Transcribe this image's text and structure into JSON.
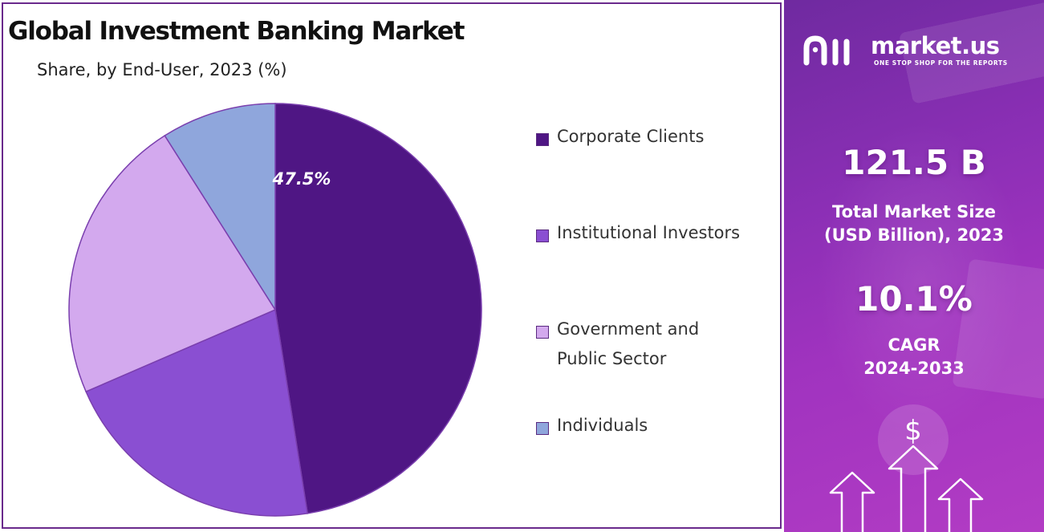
{
  "chart_data": {
    "type": "pie",
    "title": "Global Investment Banking Market",
    "subtitle": "Share, by End-User, 2023 (%)",
    "slices": [
      {
        "label": "Corporate Clients",
        "value": 47.5,
        "display_label": "47.5%",
        "color": "#4f1684"
      },
      {
        "label": "Institutional Investors",
        "value": 21,
        "display_label": "",
        "color": "#8a4fd2"
      },
      {
        "label": "Government and Public Sector",
        "value": 22.5,
        "display_label": "",
        "color": "#d3a9ee"
      },
      {
        "label": "Individuals",
        "value": 9,
        "display_label": "",
        "color": "#8fa6dc"
      }
    ],
    "start_angle_deg": 0,
    "direction": "clockwise",
    "legend_position": "right",
    "border_color": "#6a2a8c"
  },
  "legend": {
    "items": [
      {
        "line1": "Corporate Clients",
        "line2": ""
      },
      {
        "line1": "Institutional Investors",
        "line2": ""
      },
      {
        "line1": "Government and",
        "line2": "Public Sector"
      },
      {
        "line1": "Individuals",
        "line2": ""
      }
    ]
  },
  "side_panel": {
    "brand_name": "market.us",
    "brand_tagline": "ONE STOP SHOP FOR THE REPORTS",
    "market_size_value": "121.5 B",
    "market_size_label_1": "Total Market Size",
    "market_size_label_2": "(USD Billion), 2023",
    "cagr_value": "10.1%",
    "cagr_label_1": "CAGR",
    "cagr_label_2": "2024-2033",
    "dollar_sign": "$",
    "icons": [
      "market-us-logo-icon",
      "dollar-coin-icon",
      "up-arrow-icon"
    ],
    "accent_colors": [
      "#6f2aa0",
      "#b23cc4"
    ]
  }
}
